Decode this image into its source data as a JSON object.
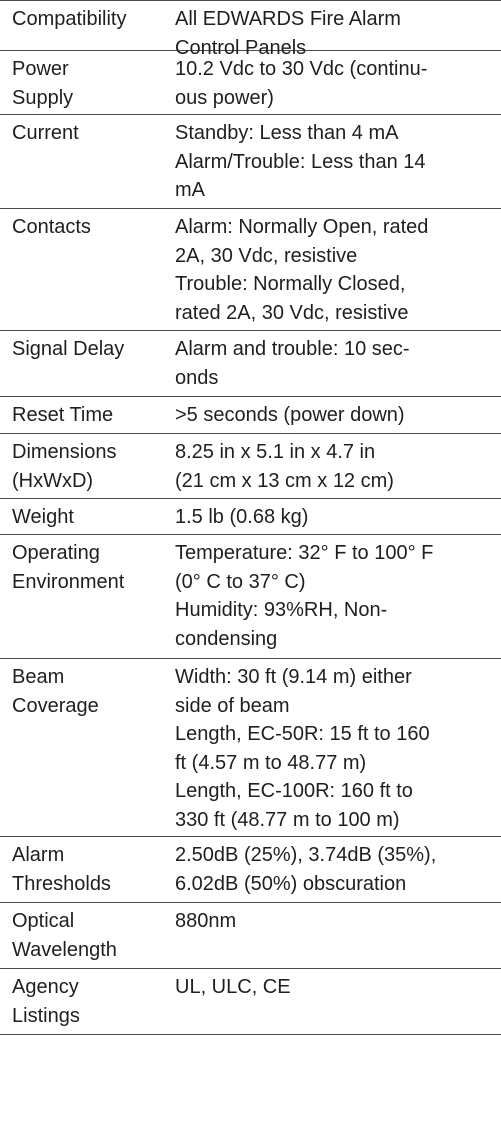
{
  "rows": [
    {
      "label": "Compatibility",
      "value": "All EDWARDS Fire Alarm\nControl Panels"
    },
    {
      "label": "Power\nSupply",
      "value": "10.2 Vdc to 30 Vdc (continu-\nous power)"
    },
    {
      "label": "Current",
      "value": "Standby: Less than 4 mA\nAlarm/Trouble: Less than 14\nmA"
    },
    {
      "label": "Contacts",
      "value": "Alarm: Normally Open, rated\n2A, 30 Vdc, resistive\nTrouble: Normally Closed,\nrated 2A, 30 Vdc,  resistive"
    },
    {
      "label": "Signal Delay",
      "value": "Alarm and trouble: 10 sec-\nonds"
    },
    {
      "label": "Reset Time",
      "value": ">5 seconds (power down)"
    },
    {
      "label": "Dimensions\n(HxWxD)",
      "value": "8.25 in x 5.1 in x 4.7 in\n(21 cm x 13 cm x 12 cm)"
    },
    {
      "label": "Weight",
      "value": "1.5 lb (0.68 kg)"
    },
    {
      "label": "Operating\nEnvironment",
      "value": "Temperature: 32° F to 100° F\n(0° C to 37° C)\nHumidity: 93%RH, Non-\ncondensing"
    },
    {
      "label": "Beam\nCoverage",
      "value": "Width: 30 ft (9.14 m) either\nside of beam\nLength, EC-50R: 15 ft to 160\nft (4.57 m to 48.77 m)\nLength, EC-100R: 160 ft to\n330 ft  (48.77 m to 100 m)"
    },
    {
      "label": "Alarm\nThresholds",
      "value": "2.50dB (25%), 3.74dB (35%),\n6.02dB (50%) obscuration"
    },
    {
      "label": "Optical\nWavelength",
      "value": "880nm"
    },
    {
      "label": "Agency\nListings",
      "value": "UL, ULC, CE"
    }
  ]
}
